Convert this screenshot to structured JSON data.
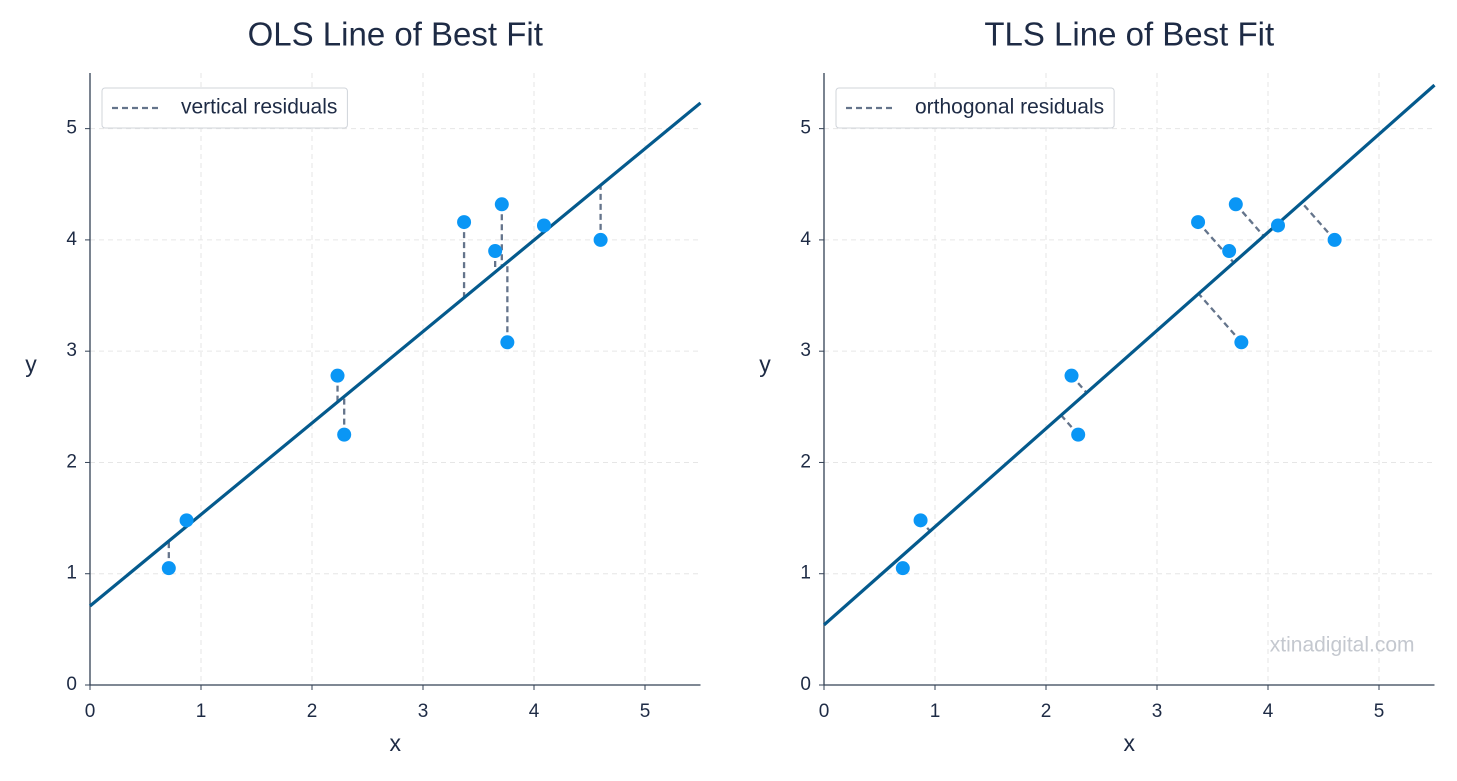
{
  "chart_data": [
    {
      "type": "scatter",
      "title": "OLS Line of Best Fit",
      "xlabel": "x",
      "ylabel": "y",
      "x": [
        0.71,
        0.87,
        2.23,
        2.29,
        3.37,
        3.65,
        3.71,
        3.76,
        4.09,
        4.6
      ],
      "values": [
        1.05,
        1.48,
        2.78,
        2.25,
        4.16,
        3.9,
        4.32,
        3.08,
        4.13,
        4.0
      ],
      "color": "#0a96f5",
      "fit_line": {
        "intercept": 0.71,
        "slope": 0.822,
        "color": "#045a8d"
      },
      "residuals": {
        "name": "vertical residuals",
        "kind": "vertical",
        "color": "#64748b"
      },
      "legend": "upper left",
      "grid": true,
      "xlim": [
        0,
        5.5
      ],
      "ylim": [
        0,
        5.5
      ],
      "xticks": [
        0,
        1,
        2,
        3,
        4,
        5
      ],
      "yticks": [
        0,
        1,
        2,
        3,
        4,
        5
      ]
    },
    {
      "type": "scatter",
      "title": "TLS Line of Best Fit",
      "xlabel": "x",
      "ylabel": "y",
      "x": [
        0.71,
        0.87,
        2.23,
        2.29,
        3.37,
        3.65,
        3.71,
        3.76,
        4.09,
        4.6
      ],
      "values": [
        1.05,
        1.48,
        2.78,
        2.25,
        4.16,
        3.9,
        4.32,
        3.08,
        4.13,
        4.0
      ],
      "color": "#0a96f5",
      "fit_line": {
        "intercept": 0.54,
        "slope": 0.882,
        "color": "#045a8d"
      },
      "residuals": {
        "name": "orthogonal residuals",
        "kind": "orthogonal",
        "color": "#64748b"
      },
      "legend": "upper left",
      "grid": true,
      "annotation": "xtinadigital.com",
      "xlim": [
        0,
        5.5
      ],
      "ylim": [
        0,
        5.5
      ],
      "xticks": [
        0,
        1,
        2,
        3,
        4,
        5
      ],
      "yticks": [
        0,
        1,
        2,
        3,
        4,
        5
      ]
    }
  ]
}
